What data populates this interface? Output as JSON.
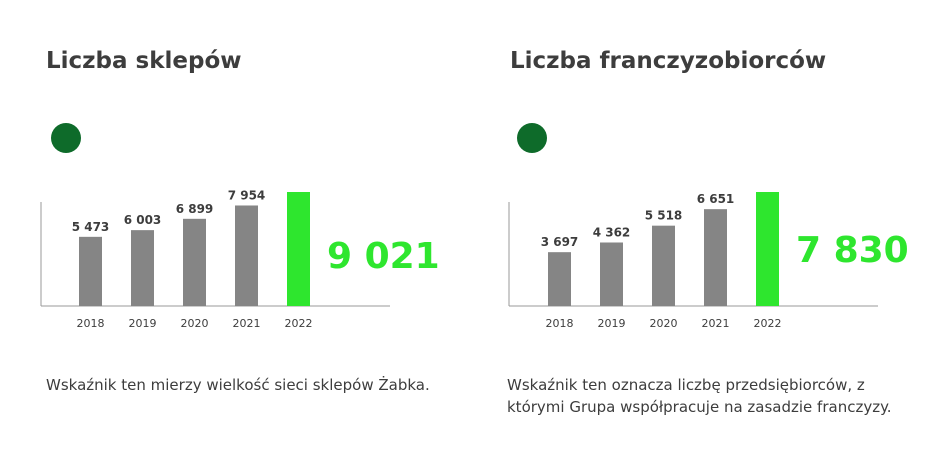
{
  "colors": {
    "bar": "#858585",
    "highlight": "#2ee62e",
    "dot": "#0e6b2a",
    "axis": "#9a9a9a",
    "text": "#3d3d3d"
  },
  "panels": [
    {
      "title": "Liczba sklepów",
      "description": "Wskaźnik ten mierzy wielkość sieci sklepów Żabka."
    },
    {
      "title": "Liczba franczyzobiorców",
      "description_lines": [
        "Wskaźnik ten oznacza liczbę przedsiębiorców, z",
        "którymi Grupa współpracuje na zasadzie franczyzy."
      ]
    }
  ],
  "chart_data": [
    {
      "type": "bar",
      "title": "Liczba sklepów",
      "categories": [
        "2018",
        "2019",
        "2020",
        "2021",
        "2022"
      ],
      "values": [
        5473,
        6003,
        6899,
        7954,
        9021
      ],
      "data_labels": [
        "5 473",
        "6 003",
        "6 899",
        "7 954",
        "9 021"
      ],
      "highlight_index": 4,
      "ylim": [
        0,
        9021
      ]
    },
    {
      "type": "bar",
      "title": "Liczba franczyzobiorców",
      "categories": [
        "2018",
        "2019",
        "2020",
        "2021",
        "2022"
      ],
      "values": [
        3697,
        4362,
        5518,
        6651,
        7830
      ],
      "data_labels": [
        "3 697",
        "4 362",
        "5 518",
        "6 651",
        "7 830"
      ],
      "highlight_index": 4,
      "ylim": [
        0,
        7830
      ]
    }
  ]
}
